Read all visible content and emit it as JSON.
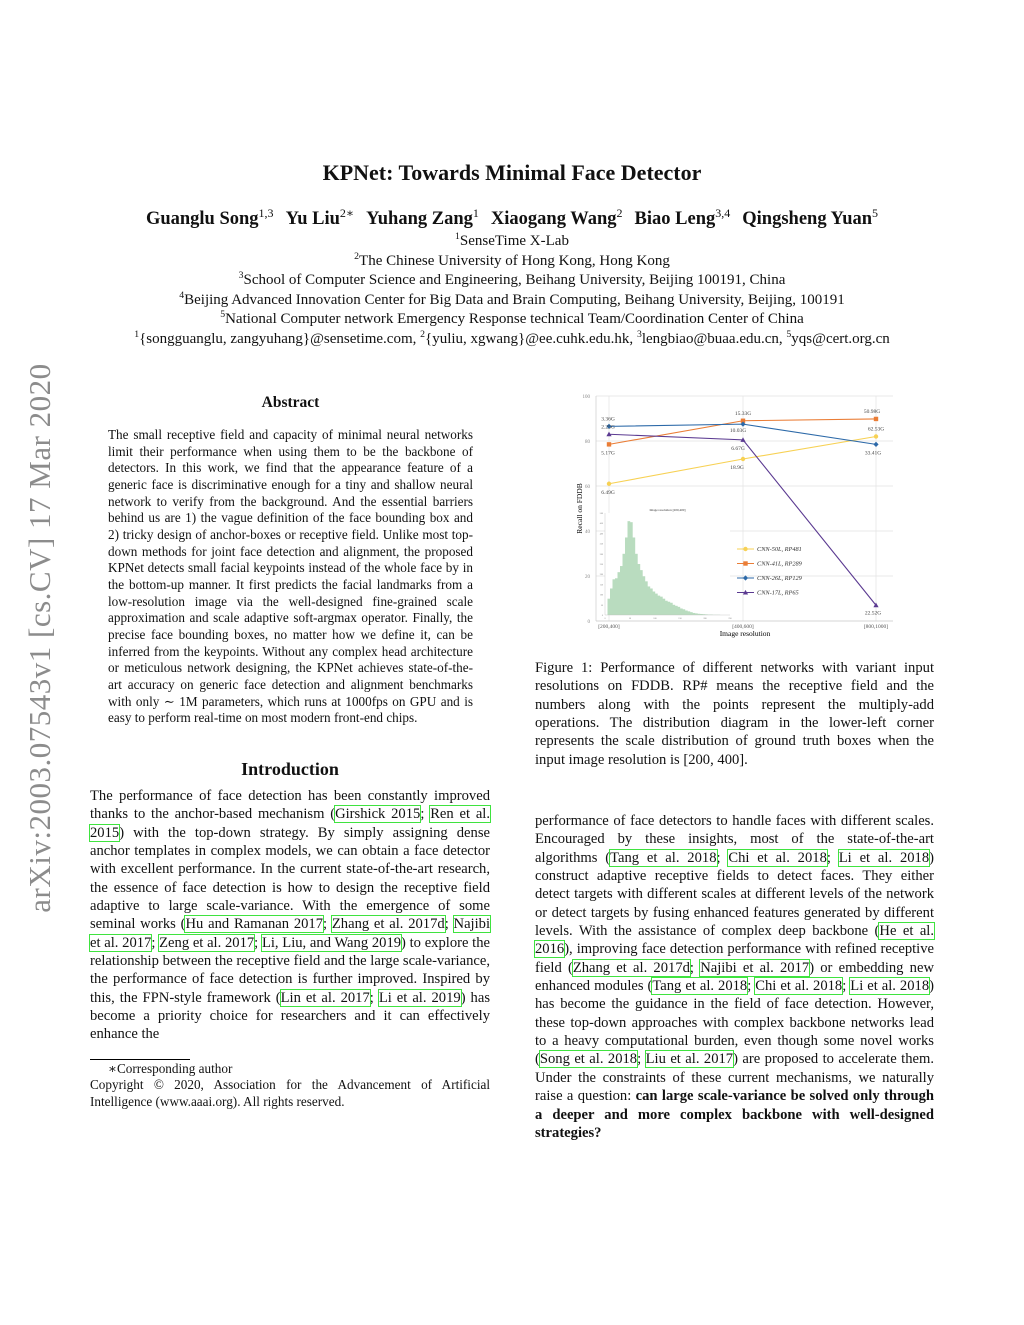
{
  "stamp": "arXiv:2003.07543v1  [cs.CV]  17 Mar 2020",
  "title": "KPNet: Towards Minimal Face Detector",
  "authors": [
    {
      "name": "Guanglu Song",
      "sup": "1,3"
    },
    {
      "name": "Yu Liu",
      "sup": "2∗"
    },
    {
      "name": "Yuhang Zang",
      "sup": "1"
    },
    {
      "name": "Xiaogang Wang",
      "sup": "2"
    },
    {
      "name": "Biao Leng",
      "sup": "3,4"
    },
    {
      "name": "Qingsheng Yuan",
      "sup": "5"
    }
  ],
  "affiliations": [
    {
      "sup": "1",
      "text": "SenseTime X-Lab"
    },
    {
      "sup": "2",
      "text": "The Chinese University of Hong Kong, Hong Kong"
    },
    {
      "sup": "3",
      "text": "School of Computer Science and Engineering, Beihang University, Beijing 100191, China"
    },
    {
      "sup": "4",
      "text": "Beijing Advanced Innovation Center for Big Data and Brain Computing, Beihang University, Beijing, 100191"
    },
    {
      "sup": "5",
      "text": "National Computer network Emergency Response technical Team/Coordination Center of China"
    }
  ],
  "emails": [
    {
      "sup": "1",
      "text": "{songguanglu, zangyuhang}@sensetime.com, "
    },
    {
      "sup": "2",
      "text": "{yuliu, xgwang}@ee.cuhk.edu.hk, "
    },
    {
      "sup": "3",
      "text": "lengbiao@buaa.edu.cn, "
    },
    {
      "sup": "5",
      "text": "yqs@cert.org.cn"
    }
  ],
  "abstract": {
    "heading": "Abstract",
    "text": "The small receptive field and capacity of minimal neural networks limit their performance when using them to be the backbone of detectors. In this work, we find that the appearance feature of a generic face is discriminative enough for a tiny and shallow neural network to verify from the background. And the essential barriers behind us are 1) the vague definition of the face bounding box and 2) tricky design of anchor-boxes or receptive field. Unlike most top-down methods for joint face detection and alignment, the proposed KPNet detects small facial keypoints instead of the whole face by in the bottom-up manner. It first predicts the facial landmarks from a low-resolution image via the well-designed fine-grained scale approximation and scale adaptive soft-argmax operator. Finally, the precise face bounding boxes, no matter how we define it, can be inferred from the keypoints. Without any complex head architecture or meticulous network designing, the KPNet achieves state-of-the-art accuracy on generic face detection and alignment benchmarks with only ∼ 1M parameters, which runs at 1000fps on GPU and is easy to perform real-time on most modern front-end chips."
  },
  "introduction": {
    "heading": "Introduction",
    "left": [
      {
        "t": "The performance of face detection has been constantly improved thanks to the anchor-based mechanism ("
      },
      {
        "t": "Girshick 2015",
        "link": true
      },
      {
        "t": "; "
      },
      {
        "t": "Ren et al. 2015",
        "link": true
      },
      {
        "t": ") with the top-down strategy. By simply assigning dense anchor templates in complex models, we can obtain a face detector with excellent performance. In the current state-of-the-art research, the essence of face detection is how to design the receptive field adaptive to large scale-variance. With the emergence of some seminal works ("
      },
      {
        "t": "Hu and Ramanan 2017",
        "link": true
      },
      {
        "t": "; "
      },
      {
        "t": "Zhang et al. 2017d",
        "link": true
      },
      {
        "t": "; "
      },
      {
        "t": "Najibi et al. 2017",
        "link": true
      },
      {
        "t": "; "
      },
      {
        "t": "Zeng et al. 2017",
        "link": true
      },
      {
        "t": "; "
      },
      {
        "t": "Li, Liu, and Wang 2019",
        "link": true
      },
      {
        "t": ") to explore the relationship between the receptive field and the large scale-variance, the performance of face detection is further improved. Inspired by this, the FPN-style framework ("
      },
      {
        "t": "Lin et al. 2017",
        "link": true
      },
      {
        "t": "; "
      },
      {
        "t": "Li et al. 2019",
        "link": true
      },
      {
        "t": ") has become a priority choice for researchers and it can effectively enhance the"
      }
    ],
    "right": [
      {
        "t": "performance of face detectors to handle faces with different scales. Encouraged by these insights, most of the state-of-the-art algorithms ("
      },
      {
        "t": "Tang et al. 2018",
        "link": true
      },
      {
        "t": "; "
      },
      {
        "t": "Chi et al. 2018",
        "link": true
      },
      {
        "t": "; "
      },
      {
        "t": "Li et al. 2018",
        "link": true
      },
      {
        "t": ") construct adaptive receptive fields to detect faces. They either detect targets with different scales at different levels of the network or detect targets by fusing enhanced features generated by different levels. With the assistance of complex deep backbone ("
      },
      {
        "t": "He et al. 2016",
        "link": true
      },
      {
        "t": "), improving face detection performance with refined receptive field ("
      },
      {
        "t": "Zhang et al. 2017d",
        "link": true
      },
      {
        "t": "; "
      },
      {
        "t": "Najibi et al. 2017",
        "link": true
      },
      {
        "t": ") or embedding new enhanced modules ("
      },
      {
        "t": "Tang et al. 2018",
        "link": true
      },
      {
        "t": "; "
      },
      {
        "t": "Chi et al. 2018",
        "link": true
      },
      {
        "t": "; "
      },
      {
        "t": "Li et al. 2018",
        "link": true
      },
      {
        "t": ") has become the guidance in the field of face detection. However, these top-down approaches with complex backbone networks lead to a heavy computational burden, even though some novel works ("
      },
      {
        "t": "Song et al. 2018",
        "link": true
      },
      {
        "t": "; "
      },
      {
        "t": "Liu et al. 2017",
        "link": true
      },
      {
        "t": ") are proposed to accelerate them. Under the constraints of these current mechanisms, we naturally raise a question: "
      },
      {
        "t": "can large scale-variance be solved only through a deeper and more complex backbone with well-designed strategies?",
        "bold": true
      }
    ]
  },
  "caption": {
    "label": "Figure 1:",
    "text": " Performance of different networks with variant input resolutions on FDDB. RP# means the receptive field and the numbers along with the points represent the multiply-add operations. The distribution diagram in the lower-left corner represents the scale distribution of ground truth boxes when the input image resolution is [200, 400]."
  },
  "footnote": {
    "corresponding": "∗Corresponding author",
    "copyright": "Copyright © 2020, Association for the Advancement of Artificial Intelligence (www.aaai.org). All rights reserved."
  },
  "chart_data": {
    "type": "line",
    "xlabel": "Image resolution",
    "ylabel": "Recall on FDDB",
    "categories": [
      "[200,400]",
      "[400,600]",
      "[800,1000]"
    ],
    "ylim": [
      0,
      100
    ],
    "yticks": [
      0,
      20,
      40,
      60,
      80,
      100
    ],
    "grid": true,
    "legend_placement": "lower-right",
    "series": [
      {
        "name": "CNN-50L, RP481",
        "color": "#f7d154",
        "marker": "circle",
        "values": [
          61,
          72,
          82
        ],
        "labels": [
          "6.49G",
          "18.9G",
          "62.53G"
        ]
      },
      {
        "name": "CNN-41L, RP289",
        "color": "#ea7d36",
        "marker": "square",
        "values": [
          78.5,
          89,
          89.8
        ],
        "labels": [
          "5.17G",
          "15.33G",
          "50.98G"
        ]
      },
      {
        "name": "CNN-26L, RP129",
        "color": "#2c69a8",
        "marker": "diamond",
        "values": [
          86.5,
          87.5,
          78.5
        ],
        "labels": [
          "3.36G",
          "10.03G",
          "33.41G"
        ]
      },
      {
        "name": "CNN-17L, RP65",
        "color": "#5b3a91",
        "marker": "triangle",
        "values": [
          83,
          80.5,
          7
        ],
        "labels": [
          "2.25G",
          "6.67G",
          "22.52G"
        ]
      }
    ],
    "inset": {
      "type": "bar",
      "title": "Image resolution [200,400]",
      "color": "#b9dcbf",
      "xlim": [
        0,
        250
      ],
      "ylim": [
        0,
        500
      ],
      "xticks": [
        0,
        50,
        100,
        150,
        200,
        250
      ],
      "yticks": [
        0,
        50,
        100,
        150,
        200,
        250,
        300,
        350,
        400,
        450,
        500
      ],
      "bin_width": 5,
      "values": [
        0,
        80,
        130,
        175,
        180,
        210,
        240,
        300,
        380,
        460,
        455,
        380,
        300,
        250,
        220,
        190,
        165,
        140,
        130,
        115,
        105,
        95,
        90,
        80,
        70,
        65,
        60,
        50,
        45,
        40,
        32,
        28,
        22,
        18,
        14,
        10,
        8,
        6,
        5,
        4,
        3,
        2,
        2,
        1,
        1,
        1,
        0,
        0,
        0,
        0
      ]
    }
  }
}
